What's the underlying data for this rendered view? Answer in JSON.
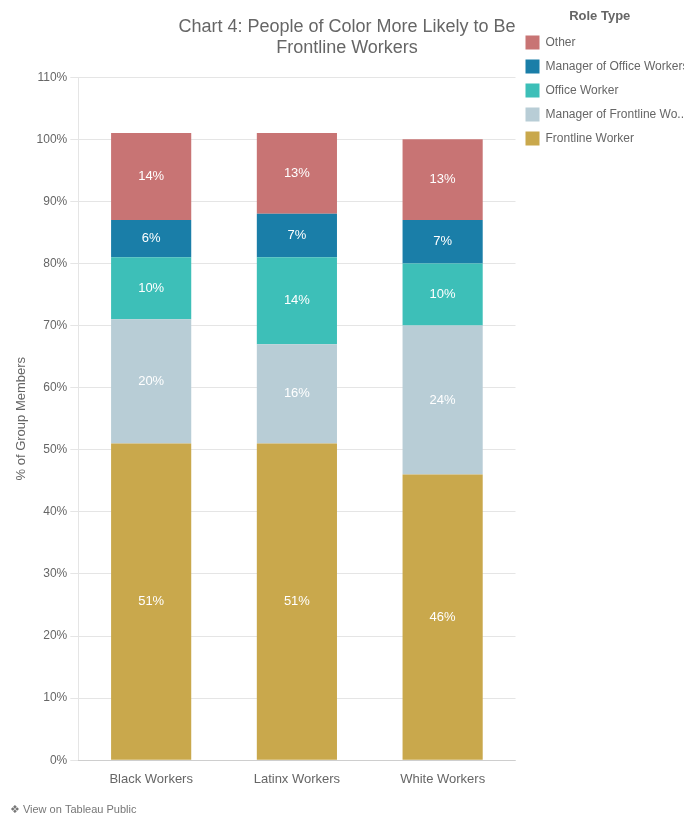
{
  "chart_data": {
    "type": "bar",
    "title": [
      "Chart 4: People of Color More Likely to Be",
      "Frontline Workers"
    ],
    "annotations": [
      "❖ View on Tableau Public"
    ],
    "ylabel": "% of Group Members",
    "legend_title": "Role Type",
    "categories": [
      "Black Workers",
      "Latinx Workers",
      "White Workers"
    ],
    "series": [
      {
        "name": "Frontline Worker",
        "color": "#C9A84C",
        "values": [
          51,
          51,
          46
        ],
        "value_labels": [
          "51%",
          "51%",
          "46%"
        ]
      },
      {
        "name": "Manager of Frontline Wo...",
        "color": "#B8CDD6",
        "values": [
          20,
          16,
          24
        ],
        "value_labels": [
          "20%",
          "16%",
          "24%"
        ]
      },
      {
        "name": "Office Worker",
        "color": "#3DBFB8",
        "values": [
          10,
          14,
          10
        ],
        "value_labels": [
          "10%",
          "14%",
          "10%"
        ]
      },
      {
        "name": "Manager of Office Workers",
        "color": "#1A7EA8",
        "values": [
          6,
          7,
          7
        ],
        "value_labels": [
          "6%",
          "7%",
          "7%"
        ]
      },
      {
        "name": "Other",
        "color": "#C87474",
        "values": [
          14,
          13,
          13
        ],
        "value_labels": [
          "14%",
          "13%",
          "13%"
        ]
      }
    ],
    "stacked": true,
    "data_labels": true,
    "ylim": [
      0,
      110
    ],
    "yticks": [
      {
        "value": 0,
        "label": "0%"
      },
      {
        "value": 10,
        "label": "10%"
      },
      {
        "value": 20,
        "label": "20%"
      },
      {
        "value": 30,
        "label": "30%"
      },
      {
        "value": 40,
        "label": "40%"
      },
      {
        "value": 50,
        "label": "50%"
      },
      {
        "value": 60,
        "label": "60%"
      },
      {
        "value": 70,
        "label": "70%"
      },
      {
        "value": 80,
        "label": "80%"
      },
      {
        "value": 90,
        "label": "90%"
      },
      {
        "value": 100,
        "label": "100%"
      },
      {
        "value": 110,
        "label": "110%"
      }
    ],
    "grid": true,
    "legend": "right"
  }
}
